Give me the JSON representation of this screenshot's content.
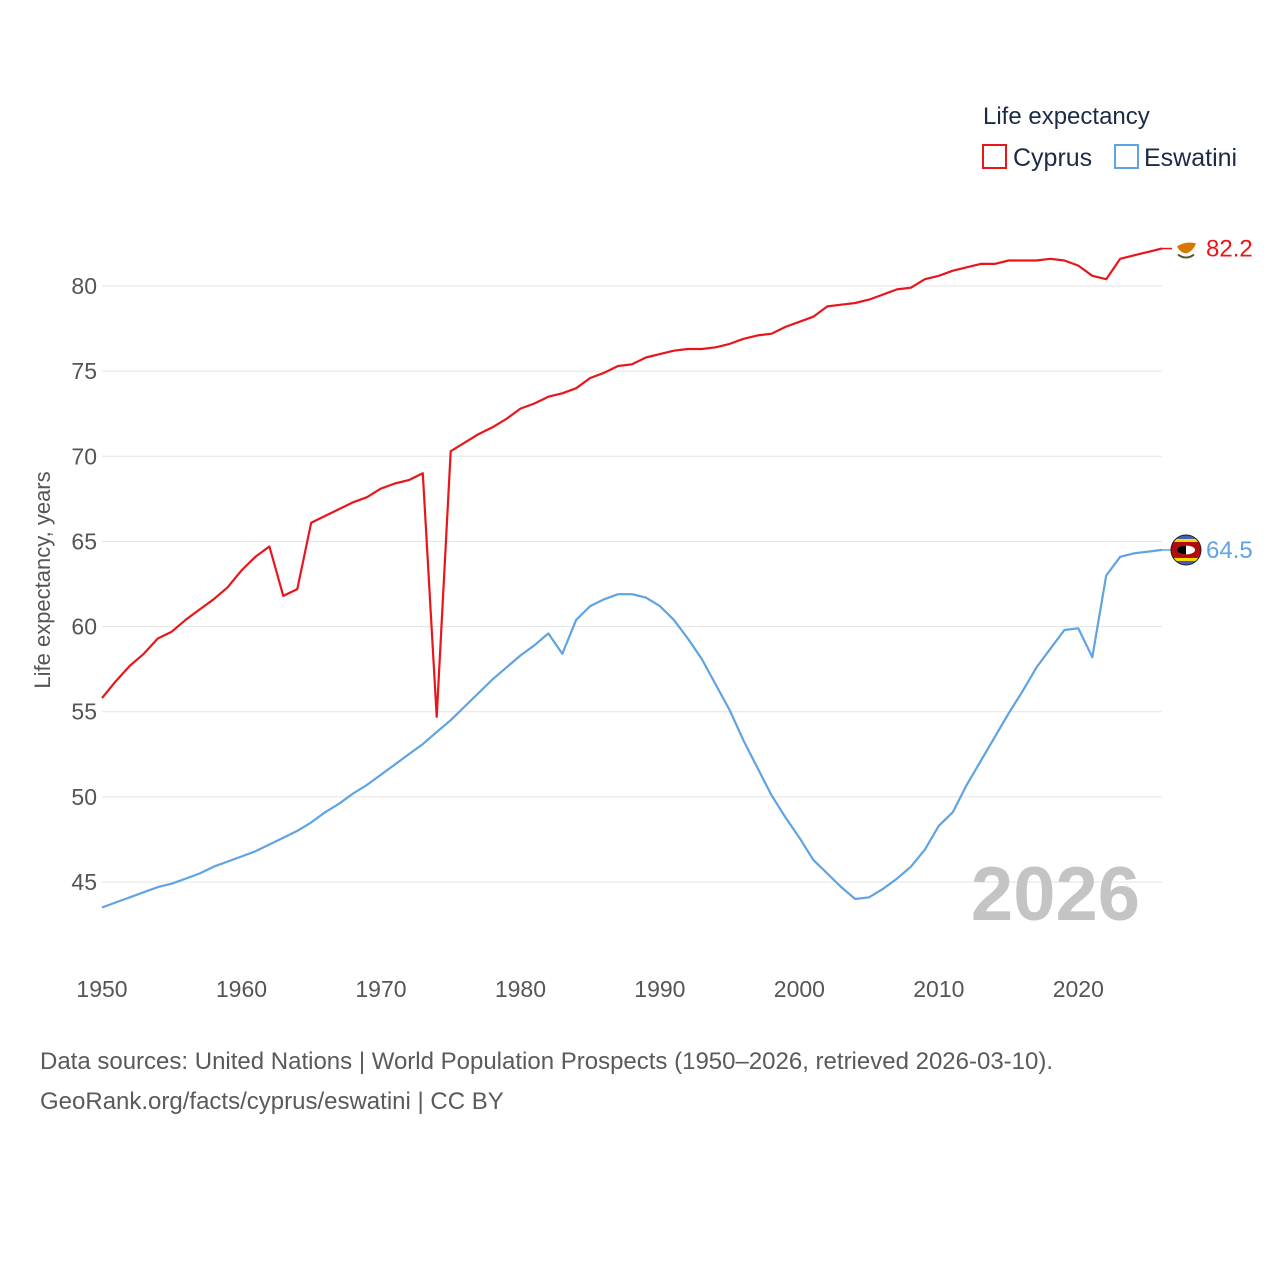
{
  "chart_data": {
    "type": "line",
    "title": "",
    "legend_title": "Life expectancy",
    "legend_position": "top-right",
    "ylabel": "Life expectancy, years",
    "xlabel": "",
    "xlim": [
      1950,
      2026
    ],
    "ylim": [
      42,
      84
    ],
    "x_ticks": [
      1950,
      1960,
      1970,
      1980,
      1990,
      2000,
      2010,
      2020
    ],
    "y_ticks": [
      45,
      50,
      55,
      60,
      65,
      70,
      75,
      80
    ],
    "year_stamp": "2026",
    "x": [
      1950,
      1951,
      1952,
      1953,
      1954,
      1955,
      1956,
      1957,
      1958,
      1959,
      1960,
      1961,
      1962,
      1963,
      1964,
      1965,
      1966,
      1967,
      1968,
      1969,
      1970,
      1971,
      1972,
      1973,
      1974,
      1975,
      1976,
      1977,
      1978,
      1979,
      1980,
      1981,
      1982,
      1983,
      1984,
      1985,
      1986,
      1987,
      1988,
      1989,
      1990,
      1991,
      1992,
      1993,
      1994,
      1995,
      1996,
      1997,
      1998,
      1999,
      2000,
      2001,
      2002,
      2003,
      2004,
      2005,
      2006,
      2007,
      2008,
      2009,
      2010,
      2011,
      2012,
      2013,
      2014,
      2015,
      2016,
      2017,
      2018,
      2019,
      2020,
      2021,
      2022,
      2023,
      2024,
      2025,
      2026
    ],
    "series": [
      {
        "name": "Cyprus",
        "color": "#e8161b",
        "end_label": "82.2",
        "values": [
          55.8,
          56.8,
          57.7,
          58.4,
          59.3,
          59.7,
          60.4,
          61.0,
          61.6,
          62.3,
          63.3,
          64.1,
          64.7,
          61.8,
          62.2,
          66.1,
          66.5,
          66.9,
          67.3,
          67.6,
          68.1,
          68.4,
          68.6,
          69.0,
          54.7,
          70.3,
          70.8,
          71.3,
          71.7,
          72.2,
          72.8,
          73.1,
          73.5,
          73.7,
          74.0,
          74.6,
          74.9,
          75.3,
          75.4,
          75.8,
          76.0,
          76.2,
          76.3,
          76.3,
          76.4,
          76.6,
          76.9,
          77.1,
          77.2,
          77.6,
          77.9,
          78.2,
          78.8,
          78.9,
          79.0,
          79.2,
          79.5,
          79.8,
          79.9,
          80.4,
          80.6,
          80.9,
          81.1,
          81.3,
          81.3,
          81.5,
          81.5,
          81.5,
          81.6,
          81.5,
          81.2,
          80.6,
          80.4,
          81.6,
          81.8,
          82.0,
          82.2
        ]
      },
      {
        "name": "Eswatini",
        "color": "#5fa3e3",
        "end_label": "64.5",
        "values": [
          43.5,
          43.8,
          44.1,
          44.4,
          44.7,
          44.9,
          45.2,
          45.5,
          45.9,
          46.2,
          46.5,
          46.8,
          47.2,
          47.6,
          48.0,
          48.5,
          49.1,
          49.6,
          50.2,
          50.7,
          51.3,
          51.9,
          52.5,
          53.1,
          53.8,
          54.5,
          55.3,
          56.1,
          56.9,
          57.6,
          58.3,
          58.9,
          59.6,
          58.4,
          60.4,
          61.2,
          61.6,
          61.9,
          61.9,
          61.7,
          61.2,
          60.4,
          59.3,
          58.1,
          56.6,
          55.1,
          53.3,
          51.7,
          50.1,
          48.8,
          47.6,
          46.3,
          45.5,
          44.7,
          44.0,
          44.1,
          44.6,
          45.2,
          45.9,
          46.9,
          48.3,
          49.1,
          50.7,
          52.1,
          53.5,
          54.9,
          56.2,
          57.6,
          58.7,
          59.8,
          59.9,
          58.2,
          63.0,
          64.1,
          64.3,
          64.4,
          64.5
        ]
      }
    ]
  },
  "source": {
    "line1": "Data sources: United Nations | World Population Prospects (1950–2026, retrieved 2026-03-10).",
    "line2": "GeoRank.org/facts/cyprus/eswatini | CC BY"
  },
  "flags": {
    "cyprus": "cyprus-flag-icon",
    "eswatini": "eswatini-flag-icon"
  }
}
